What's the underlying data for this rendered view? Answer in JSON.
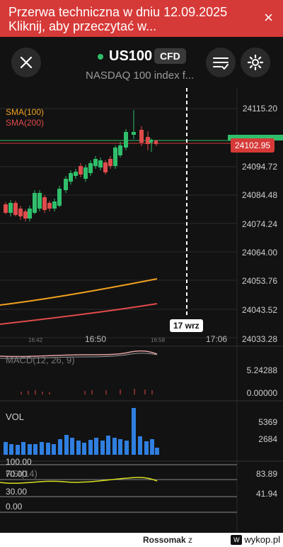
{
  "banner": {
    "message": "Przerwa techniczna w dniu 12.09.2025 Kliknij, aby przeczytać w...",
    "close_glyph": "×"
  },
  "header": {
    "symbol": "US100",
    "instrument_type": "CFD",
    "description": "NASDAQ 100 index f...",
    "status_color": "#2fbf6b"
  },
  "chart": {
    "price_axis": [
      "24115.20",
      "24102.95",
      "24094.72",
      "24084.48",
      "24074.24",
      "24064.00",
      "24053.76",
      "24043.52",
      "24033.28"
    ],
    "current_price": "24102.95",
    "sma100_label": "SMA(100)",
    "sma200_label": "SMA(200)",
    "sma100_color": "#f0a020",
    "sma200_color": "#e04b4b",
    "time_axis": [
      "16:50",
      "17:06"
    ],
    "time_axis_small": [
      "16:42",
      "16:58"
    ],
    "crosshair_date": "17 wrz"
  },
  "indicators": {
    "macd_label": "MACD(12, 26, 9)",
    "macd_ticks": [
      "5.24288",
      "0.00000"
    ],
    "vol_label": "VOL",
    "vol_ticks": [
      "5369",
      "2684"
    ],
    "rsi_label": "RSI(14)",
    "rsi_levels": [
      "100.00",
      "70.00",
      "30.00",
      "0.00"
    ],
    "rsi_ticks": [
      "83.89",
      "41.94"
    ]
  },
  "footer": {
    "user": "Rossomak",
    "connector": "z",
    "site": "wykop.pl"
  }
}
